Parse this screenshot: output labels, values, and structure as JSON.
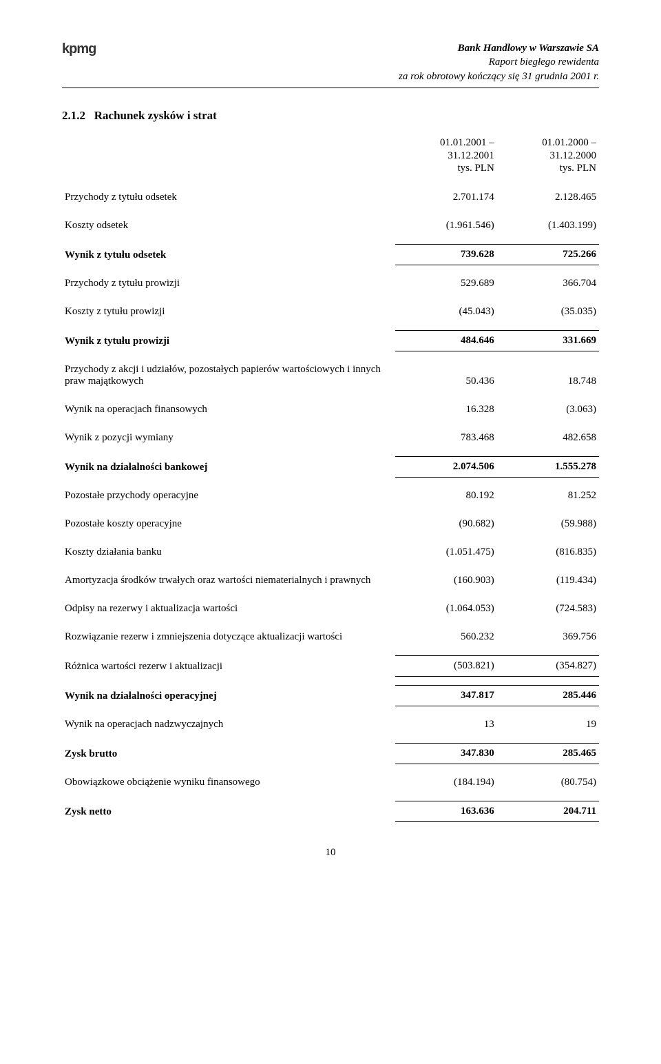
{
  "header": {
    "logo": "kpmg",
    "company": "Bank Handlowy w Warszawie SA",
    "line2": "Raport biegłego rewidenta",
    "line3": "za rok obrotowy kończący się 31 grudnia 2001 r."
  },
  "section": {
    "number": "2.1.2",
    "title": "Rachunek zysków i strat"
  },
  "columns": {
    "col1_line1": "01.01.2001 –",
    "col1_line2": "31.12.2001",
    "col1_line3": "tys. PLN",
    "col2_line1": "01.01.2000 –",
    "col2_line2": "31.12.2000",
    "col2_line3": "tys. PLN"
  },
  "rows": [
    {
      "label": "Przychody z tytułu odsetek",
      "v1": "2.701.174",
      "v2": "2.128.465",
      "bold": false,
      "rule": false
    },
    {
      "label": "Koszty odsetek",
      "v1": "(1.961.546)",
      "v2": "(1.403.199)",
      "bold": false,
      "rule": false
    },
    {
      "label": "Wynik z tytułu odsetek",
      "v1": "739.628",
      "v2": "725.266",
      "bold": true,
      "rule": true
    },
    {
      "label": "Przychody z tytułu prowizji",
      "v1": "529.689",
      "v2": "366.704",
      "bold": false,
      "rule": false
    },
    {
      "label": "Koszty z tytułu prowizji",
      "v1": "(45.043)",
      "v2": "(35.035)",
      "bold": false,
      "rule": false
    },
    {
      "label": "Wynik z tytułu prowizji",
      "v1": "484.646",
      "v2": "331.669",
      "bold": true,
      "rule": true
    },
    {
      "label": "Przychody z akcji i udziałów, pozostałych papierów wartościowych i innych praw majątkowych",
      "v1": "50.436",
      "v2": "18.748",
      "bold": false,
      "rule": false
    },
    {
      "label": "Wynik na operacjach finansowych",
      "v1": "16.328",
      "v2": "(3.063)",
      "bold": false,
      "rule": false
    },
    {
      "label": "Wynik z pozycji wymiany",
      "v1": "783.468",
      "v2": "482.658",
      "bold": false,
      "rule": false
    },
    {
      "label": "Wynik na działalności bankowej",
      "v1": "2.074.506",
      "v2": "1.555.278",
      "bold": true,
      "rule": true
    },
    {
      "label": "Pozostałe przychody operacyjne",
      "v1": "80.192",
      "v2": "81.252",
      "bold": false,
      "rule": false
    },
    {
      "label": "Pozostałe koszty operacyjne",
      "v1": "(90.682)",
      "v2": "(59.988)",
      "bold": false,
      "rule": false
    },
    {
      "label": "Koszty działania banku",
      "v1": "(1.051.475)",
      "v2": "(816.835)",
      "bold": false,
      "rule": false
    },
    {
      "label": "Amortyzacja środków trwałych oraz wartości niematerialnych i prawnych",
      "v1": "(160.903)",
      "v2": "(119.434)",
      "bold": false,
      "rule": false
    },
    {
      "label": "Odpisy na rezerwy i aktualizacja wartości",
      "v1": "(1.064.053)",
      "v2": "(724.583)",
      "bold": false,
      "rule": false
    },
    {
      "label": "Rozwiązanie rezerw i zmniejszenia dotyczące aktualizacji wartości",
      "v1": "560.232",
      "v2": "369.756",
      "bold": false,
      "rule": false
    },
    {
      "label": "Różnica wartości rezerw i aktualizacji",
      "v1": "(503.821)",
      "v2": "(354.827)",
      "bold": false,
      "rule": true
    },
    {
      "label": "Wynik na działalności operacyjnej",
      "v1": "347.817",
      "v2": "285.446",
      "bold": true,
      "rule": true
    },
    {
      "label": "Wynik na operacjach nadzwyczajnych",
      "v1": "13",
      "v2": "19",
      "bold": false,
      "rule": false
    },
    {
      "label": "Zysk brutto",
      "v1": "347.830",
      "v2": "285.465",
      "bold": true,
      "rule": true
    },
    {
      "label": "Obowiązkowe obciążenie wyniku finansowego",
      "v1": "(184.194)",
      "v2": "(80.754)",
      "bold": false,
      "rule": false
    },
    {
      "label": "Zysk netto",
      "v1": "163.636",
      "v2": "204.711",
      "bold": true,
      "rule": true
    }
  ],
  "page_number": "10"
}
